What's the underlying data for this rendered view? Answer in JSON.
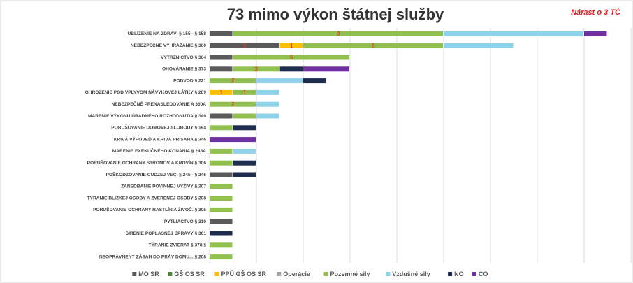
{
  "chart_data": {
    "type": "stacked_bar_horizontal",
    "title": "73 mimo výkon štátnej služby",
    "annotation": "Nárast o 3 TČ",
    "categories": [
      "UBLÍŽENIE NA ZDRAVÍ § 155 - § 158",
      "NEBEZPEČNÉ VYHRÁŽANIE § 360",
      "VÝTRŽNÍCTVO § 364",
      "OHOVÁRANIE § 373",
      "PODVOD § 221",
      "OHROZENIE POD VPLYVOM NÁVYKOVEJ LÁTKY § 289",
      "NEBEZPEČNÉ PRENASLEDOVANIE § 360A",
      "MARENIE VÝKONU ÚRADNÉHO ROZHODNUTIA § 349",
      "PORUŠOVANIE DOMOVEJ SLOBODY § 194",
      "KRIVÁ VÝPOVEĎ A KRIVÁ PRÍSAHA § 346",
      "MARENIE EXEKUČNÉHO KONANIA § 243A",
      "PORUŠOVANIE OCHRANY STROMOV A KROVÍN § 306",
      "POŠKODZOVANIE CUDZEJ VECI § 245 - § 246",
      "ZANEDBANIE POVINNEJ VÝŽIVY § 207",
      "TÝRANIE BLÍZKEJ OSOBY A ZVERENEJ OSOBY § 208",
      "PORUŠOVANIE OCHRANY RASTLÍN A ŽIVOČ. § 305",
      "PYTLIACTVO § 310",
      "ŠÍRENIE POPLAŠNEJ SPRÁVY § 361",
      "TÝRANIE ZVIERAT § 378 §",
      "NEOPRÁVNENÝ ZÁSAH DO PRÁV DOMU... § 208"
    ],
    "series": [
      {
        "name": "MO SR",
        "color": "#5a5a5a",
        "values": [
          1,
          3,
          1,
          1,
          0,
          0,
          0,
          1,
          0,
          0,
          0,
          0,
          1,
          0,
          0,
          0,
          1,
          0,
          0,
          0
        ],
        "value_labels": [
          null,
          "3",
          null,
          null,
          null,
          null,
          null,
          null,
          null,
          null,
          null,
          null,
          null,
          null,
          null,
          null,
          null,
          null,
          null,
          null
        ]
      },
      {
        "name": "GŠ OS SR",
        "color": "#548235",
        "values": [
          0,
          0,
          0,
          0,
          0,
          0,
          0,
          0,
          0,
          0,
          0,
          0,
          0,
          0,
          0,
          0,
          0,
          0,
          0,
          0
        ]
      },
      {
        "name": "PPÚ GŠ OS SR",
        "color": "#ffc000",
        "values": [
          0,
          1,
          0,
          0,
          0,
          1,
          0,
          0,
          0,
          0,
          0,
          0,
          0,
          0,
          0,
          0,
          0,
          0,
          0,
          0
        ],
        "value_labels": [
          null,
          "1",
          null,
          null,
          null,
          "1",
          null,
          null,
          null,
          null,
          null,
          null,
          null,
          null,
          null,
          null,
          null,
          null,
          null,
          null
        ]
      },
      {
        "name": "Operácie",
        "color": "#a5a5a5",
        "values": [
          0,
          0,
          0,
          0,
          0,
          0,
          0,
          0,
          0,
          0,
          0,
          0,
          0,
          0,
          0,
          0,
          0,
          0,
          0,
          0
        ]
      },
      {
        "name": "Pozemné sily",
        "color": "#92c050",
        "values": [
          9,
          6,
          5,
          2,
          2,
          1,
          2,
          1,
          1,
          0,
          1,
          1,
          0,
          1,
          1,
          1,
          0,
          0,
          1,
          1
        ],
        "value_labels": [
          "9",
          "6",
          "5",
          "2",
          "2",
          "1",
          "2",
          null,
          null,
          null,
          null,
          null,
          null,
          null,
          null,
          null,
          null,
          null,
          null,
          null
        ]
      },
      {
        "name": "Vzdušné sily",
        "color": "#8fd3ea",
        "values": [
          6,
          3,
          0,
          0,
          2,
          1,
          1,
          1,
          0,
          0,
          1,
          0,
          0,
          0,
          0,
          0,
          0,
          0,
          0,
          0
        ]
      },
      {
        "name": "NO",
        "color": "#1f2d4e",
        "values": [
          0,
          0,
          0,
          1,
          1,
          0,
          0,
          0,
          1,
          0,
          0,
          1,
          1,
          0,
          0,
          0,
          0,
          1,
          0,
          0
        ]
      },
      {
        "name": "CO",
        "color": "#7030a0",
        "values": [
          1,
          0,
          0,
          2,
          0,
          0,
          0,
          0,
          0,
          2,
          0,
          0,
          0,
          0,
          0,
          0,
          0,
          0,
          0,
          0
        ]
      }
    ],
    "xlim": [
      0,
      18
    ],
    "xticks": [
      0,
      2,
      4,
      6,
      8,
      10,
      12,
      14,
      16,
      18
    ],
    "grid": true
  }
}
